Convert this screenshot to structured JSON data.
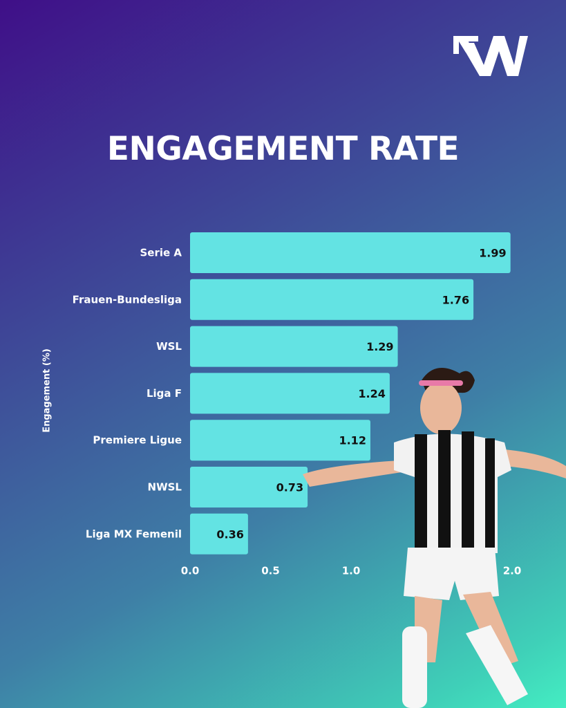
{
  "title": "ENGAGEMENT RATE",
  "logo": {
    "letter": "W",
    "icon": "w-arrow-logo"
  },
  "chart_data": {
    "type": "bar",
    "orientation": "horizontal",
    "title": "ENGAGEMENT RATE",
    "ylabel": "Engagement (%)",
    "xlabel": "",
    "categories": [
      "Serie A",
      "Frauen-Bundesliga",
      "WSL",
      "Liga F",
      "Premiere Ligue",
      "NWSL",
      "Liga MX Femenil"
    ],
    "values": [
      1.99,
      1.76,
      1.29,
      1.24,
      1.12,
      0.73,
      0.36
    ],
    "value_labels": [
      "1.99",
      "1.76",
      "1.29",
      "1.24",
      "1.12",
      "0.73",
      "0.36"
    ],
    "xticks": [
      "0.0",
      "0.5",
      "1.0",
      "2.0"
    ],
    "xtick_values": [
      0,
      0.5,
      1.0,
      2.0
    ],
    "xlim": [
      0,
      2.0
    ],
    "grid": false,
    "bar_color": "#63e3e3"
  },
  "colors": {
    "bar": "#63e3e3",
    "text_light": "#ffffff",
    "text_dark": "#111111"
  }
}
